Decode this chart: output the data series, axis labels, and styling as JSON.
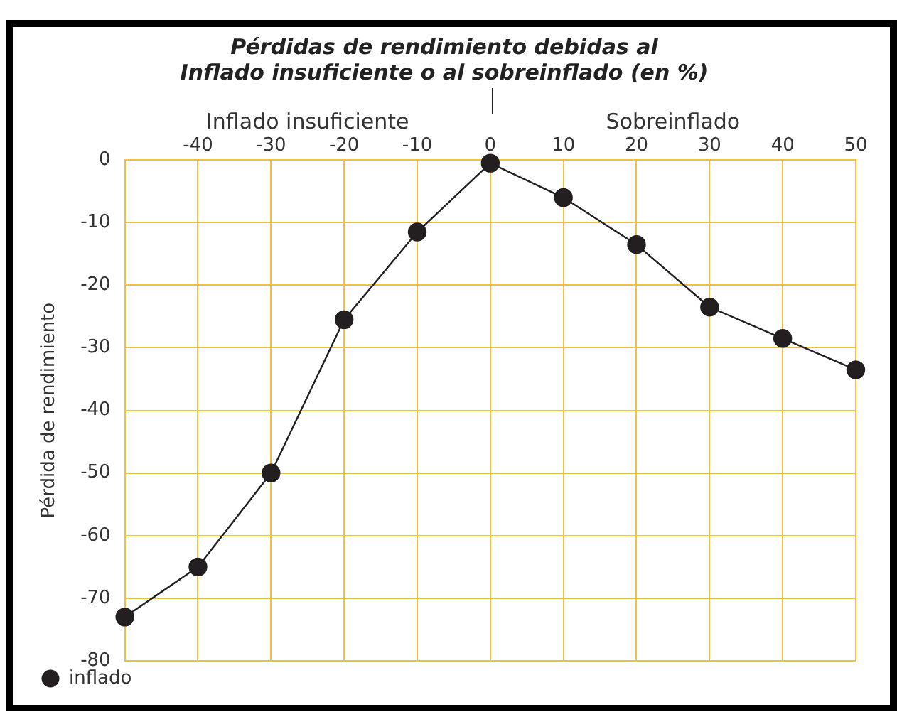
{
  "chart_data": {
    "type": "line",
    "title": "Pérdidas de rendimiento debidas al\nInflado insuficiente o al sobreinflado (en %)",
    "ylabel": "Pérdida de rendimiento",
    "annotations": [
      "Inflado insuficiente",
      "Sobreinflado"
    ],
    "x": [
      -50,
      -40,
      -30,
      -20,
      -10,
      0,
      10,
      20,
      30,
      40,
      50
    ],
    "series": [
      {
        "name": "inflado",
        "color": "#231f20",
        "values": [
          -73,
          -65,
          -50,
          -25.5,
          -11.5,
          -0.5,
          -6,
          -13.5,
          -23.5,
          -28.5,
          -33.5
        ]
      }
    ],
    "xlim": [
      -50,
      50
    ],
    "xticks": [
      -40,
      -30,
      -20,
      -10,
      0,
      10,
      20,
      30,
      40,
      50
    ],
    "ylim": [
      -80,
      0
    ],
    "yticks": [
      0,
      -10,
      -20,
      -30,
      -40,
      -50,
      -60,
      -70,
      -80
    ],
    "grid": true,
    "legend": "bottom left",
    "marker": "circle",
    "line_style": "solid"
  }
}
